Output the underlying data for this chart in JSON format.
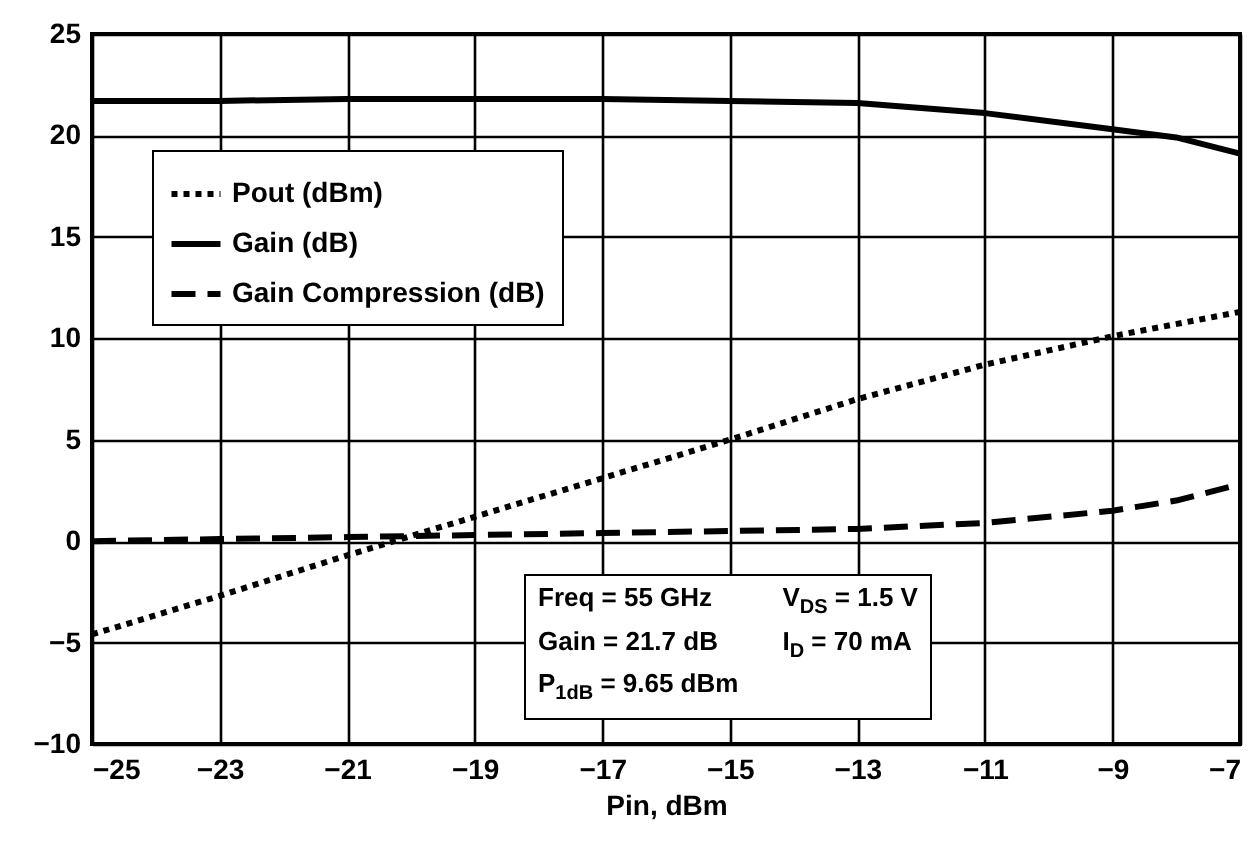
{
  "chart_data": {
    "type": "line",
    "xlabel": "Pin, dBm",
    "x": [
      -25,
      -23,
      -21,
      -19,
      -17,
      -15,
      -13,
      -11,
      -9,
      -8,
      -7
    ],
    "series": [
      {
        "name": "Pout (dBm)",
        "color": "#000000",
        "line_style": "dotted",
        "x": [
          -25,
          -23,
          -21,
          -19,
          -17,
          -15,
          -13,
          -11,
          -9,
          -7
        ],
        "values": [
          -4.6,
          -2.7,
          -0.7,
          1.2,
          3.1,
          5.0,
          7.0,
          8.7,
          10.1,
          11.3
        ]
      },
      {
        "name": "Gain (dB)",
        "color": "#000000",
        "line_style": "solid",
        "values": [
          21.7,
          21.7,
          21.8,
          21.8,
          21.8,
          21.7,
          21.6,
          21.1,
          20.3,
          19.9,
          19.1
        ]
      },
      {
        "name": "Gain Compression (dB)",
        "color": "#000000",
        "line_style": "dashed",
        "values": [
          0,
          0.1,
          0.2,
          0.3,
          0.4,
          0.5,
          0.6,
          0.9,
          1.5,
          2.0,
          2.8
        ]
      }
    ],
    "xlim": [
      -25,
      -7
    ],
    "xticks": [
      {
        "value": -25,
        "label": "−25"
      },
      {
        "value": -23,
        "label": "−23"
      },
      {
        "value": -21,
        "label": "−21"
      },
      {
        "value": -19,
        "label": "−19"
      },
      {
        "value": -17,
        "label": "−17"
      },
      {
        "value": -15,
        "label": "−15"
      },
      {
        "value": -13,
        "label": "−13"
      },
      {
        "value": -11,
        "label": "−11"
      },
      {
        "value": -9,
        "label": "−9"
      },
      {
        "value": -7,
        "label": "−7"
      }
    ],
    "ylim": [
      -10,
      25
    ],
    "yticks": [
      {
        "value": -10,
        "label": "−10"
      },
      {
        "value": -5,
        "label": "−5"
      },
      0,
      5,
      10,
      15,
      20,
      25
    ],
    "grid": true,
    "legend": "top left",
    "marker": "none",
    "annotations": [
      "Freq = 55 GHz",
      "V$_{DS}$ = 1.5 V",
      "Gain = 21.7 dB",
      "I$_{D}$ = 70 mA",
      "P$_{1dB}$ = 9.65 dBm"
    ]
  }
}
